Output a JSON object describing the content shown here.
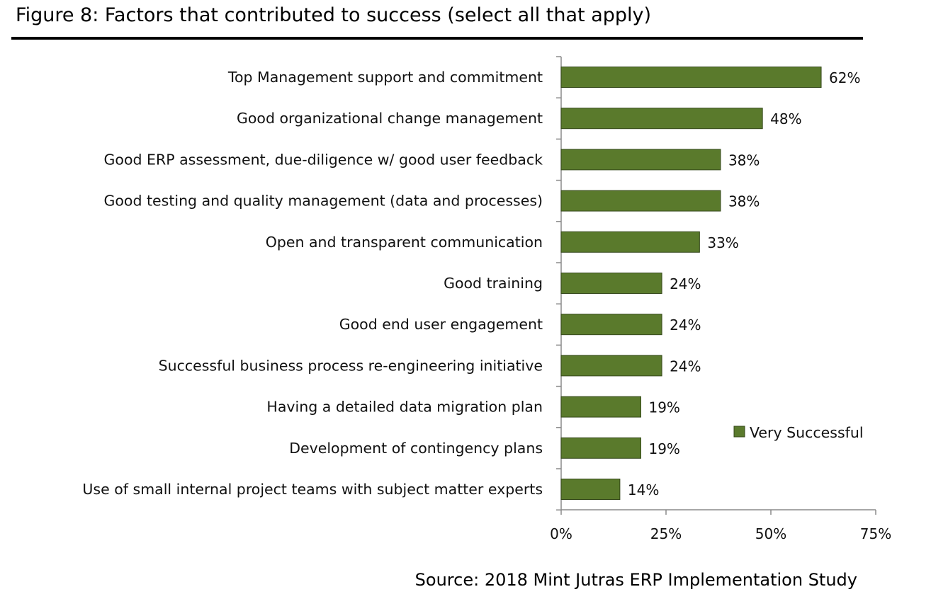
{
  "figure": {
    "title": "Figure 8: Factors that contributed to success (select all that apply)",
    "source": "Source: 2018 Mint Jutras ERP Implementation Study"
  },
  "chart_data": {
    "type": "bar",
    "orientation": "horizontal",
    "categories": [
      "Top Management support and commitment",
      "Good organizational change management",
      "Good ERP assessment, due-diligence w/ good user feedback",
      "Good testing and quality management (data and processes)",
      "Open and transparent communication",
      "Good training",
      "Good end user engagement",
      "Successful business process re-engineering initiative",
      "Having a detailed data migration plan",
      "Development of contingency plans",
      "Use of small internal project teams with subject matter experts"
    ],
    "series": [
      {
        "name": "Very Successful",
        "values": [
          62,
          48,
          38,
          38,
          33,
          24,
          24,
          24,
          19,
          19,
          14
        ],
        "labels": [
          "62%",
          "48%",
          "38%",
          "38%",
          "33%",
          "24%",
          "24%",
          "24%",
          "19%",
          "19%",
          "14%"
        ]
      }
    ],
    "xlim": [
      0,
      75
    ],
    "xticks": [
      0,
      25,
      50,
      75
    ],
    "xtick_labels": [
      "0%",
      "25%",
      "50%",
      "75%"
    ],
    "legend": "right",
    "grid": false,
    "colors": {
      "bar_fill": "#5a7a2c",
      "bar_stroke": "#34481a",
      "axis": "#8a8a8a",
      "text": "#111111"
    }
  }
}
